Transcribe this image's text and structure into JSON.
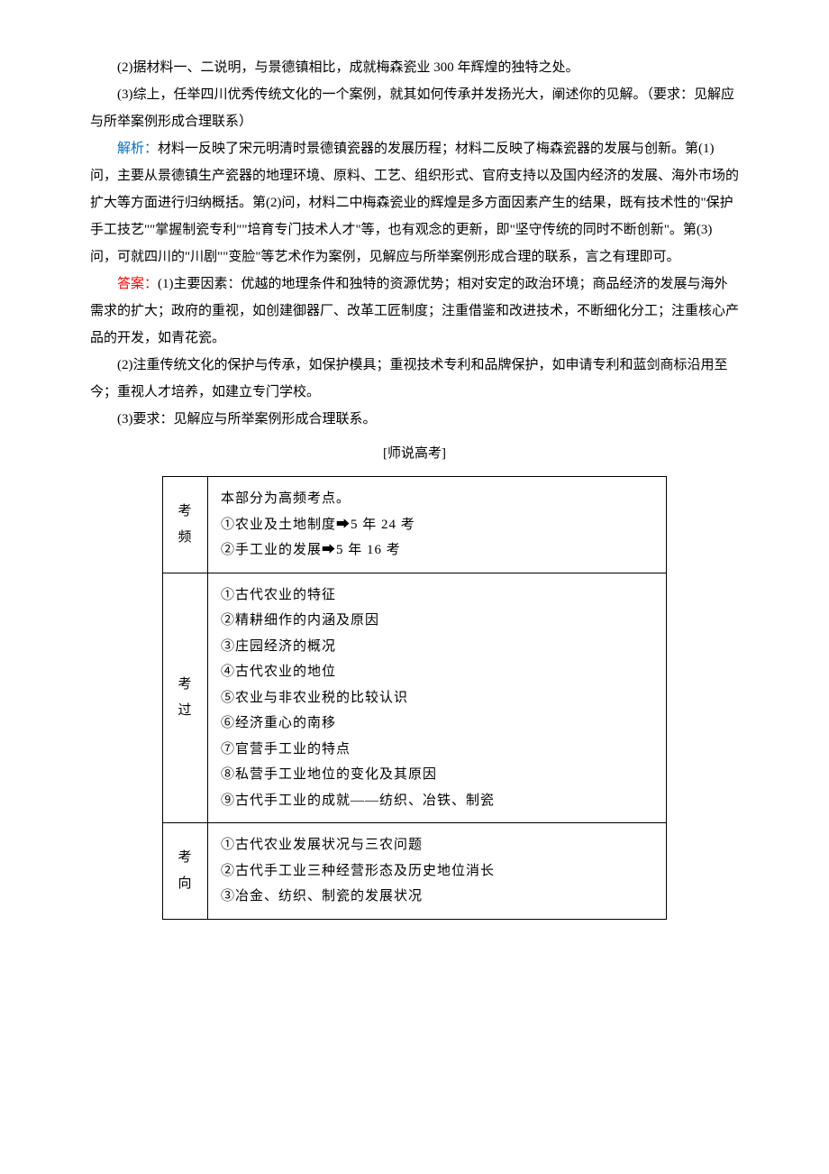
{
  "paragraphs": {
    "q2": "(2)据材料一、二说明，与景德镇相比，成就梅森瓷业 300 年辉煌的独特之处。",
    "q3": "(3)综上，任举四川优秀传统文化的一个案例，就其如何传承并发扬光大，阐述你的见解。（要求：见解应与所举案例形成合理联系）",
    "analysis_label": "解析：",
    "analysis_text": "材料一反映了宋元明清时景德镇瓷器的发展历程；材料二反映了梅森瓷器的发展与创新。第(1)问，主要从景德镇生产瓷器的地理环境、原料、工艺、组织形式、官府支持以及国内经济的发展、海外市场的扩大等方面进行归纳概括。第(2)问，材料二中梅森瓷业的辉煌是多方面因素产生的结果，既有技术性的\"保护手工技艺\"\"掌握制瓷专利\"\"培育专门技术人才\"等，也有观念的更新，即\"坚守传统的同时不断创新\"。第(3)问，可就四川的\"川剧\"\"变脸\"等艺术作为案例，见解应与所举案例形成合理的联系，言之有理即可。",
    "answer_label": "答案：",
    "answer1": "(1)主要因素：优越的地理条件和独特的资源优势；相对安定的政治环境；商品经济的发展与海外需求的扩大；政府的重视，如创建御器厂、改革工匠制度；注重借鉴和改进技术，不断细化分工；注重核心产品的开发，如青花瓷。",
    "answer2": "(2)注重传统文化的保护与传承，如保护模具；重视技术专利和品牌保护，如申请专利和蓝剑商标沿用至今；重视人才培养，如建立专门学校。",
    "answer3": "(3)要求：见解应与所举案例形成合理联系。",
    "teacher_note": "[师说高考]"
  },
  "table": {
    "rows": [
      {
        "label1": "考",
        "label2": "频",
        "items": [
          "本部分为高频考点。",
          "①农业及土地制度➡5 年 24 考",
          "②手工业的发展➡5 年 16 考"
        ]
      },
      {
        "label1": "考",
        "label2": "过",
        "items": [
          "①古代农业的特征",
          "②精耕细作的内涵及原因",
          "③庄园经济的概况",
          "④古代农业的地位",
          "⑤农业与非农业税的比较认识",
          "⑥经济重心的南移",
          "⑦官营手工业的特点",
          "⑧私营手工业地位的变化及其原因",
          "⑨古代手工业的成就——纺织、冶铁、制瓷"
        ]
      },
      {
        "label1": "考",
        "label2": "向",
        "items": [
          "①古代农业发展状况与三农问题",
          "②古代手工业三种经营形态及历史地位消长",
          "③冶金、纺织、制瓷的发展状况"
        ]
      }
    ]
  }
}
